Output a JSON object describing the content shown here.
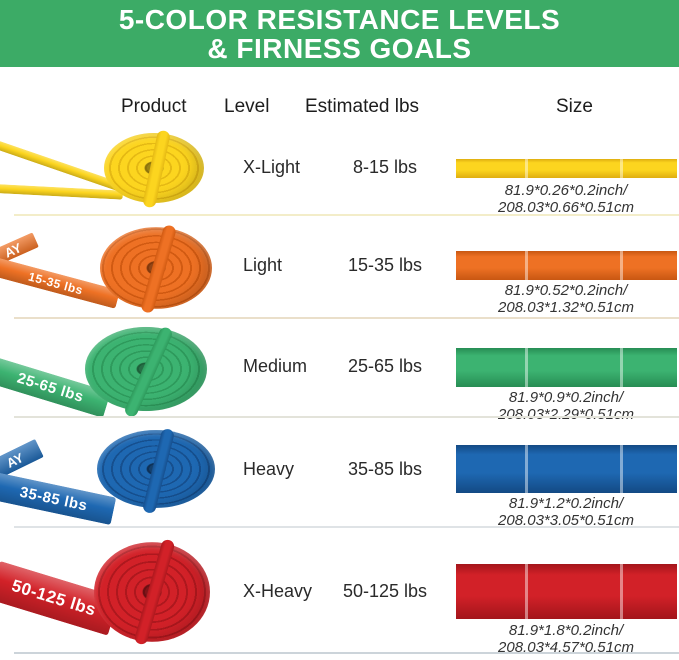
{
  "header": {
    "title_line1": "5-COLOR RESISTANCE LEVELS",
    "title_line2": "& FIRNESS GOALS",
    "bg_color": "#3cab66"
  },
  "columns": {
    "product": "Product",
    "level": "Level",
    "estimated": "Estimated lbs",
    "size": "Size"
  },
  "rows": [
    {
      "level": "X-Light",
      "lbs": "8-15 lbs",
      "size_inch": "81.9*0.26*0.2inch/",
      "size_cm": "208.03*0.66*0.51cm",
      "band_label": "",
      "brand_fragment": "",
      "colors": {
        "main": "#fcd51f",
        "dark": "#dfae10",
        "ring": "#e5b914"
      }
    },
    {
      "level": "Light",
      "lbs": "15-35 lbs",
      "size_inch": "81.9*0.52*0.2inch/",
      "size_cm": "208.03*1.32*0.51cm",
      "band_label": "15-35 lbs",
      "brand_fragment": "AY",
      "colors": {
        "main": "#ee7124",
        "dark": "#c85712",
        "ring": "#d15a12"
      }
    },
    {
      "level": "Medium",
      "lbs": "25-65 lbs",
      "size_inch": "81.9*0.9*0.2inch/",
      "size_cm": "208.03*2.29*0.51cm",
      "band_label": "25-65 lbs",
      "brand_fragment": "",
      "colors": {
        "main": "#3cb371",
        "dark": "#278d54",
        "ring": "#2e9a5c"
      }
    },
    {
      "level": "Heavy",
      "lbs": "35-85 lbs",
      "size_inch": "81.9*1.2*0.2inch/",
      "size_cm": "208.03*3.05*0.51cm",
      "band_label": "35-85 lbs",
      "brand_fragment": "AY",
      "colors": {
        "main": "#1e68b2",
        "dark": "#134a84",
        "ring": "#164f8e"
      }
    },
    {
      "level": "X-Heavy",
      "lbs": "50-125 lbs",
      "size_inch": "81.9*1.8*0.2inch/",
      "size_cm": "208.03*4.57*0.51cm",
      "band_label": "50-125 lbs",
      "brand_fragment": "",
      "colors": {
        "main": "#d22128",
        "dark": "#a3151b",
        "ring": "#ad181e"
      }
    }
  ]
}
